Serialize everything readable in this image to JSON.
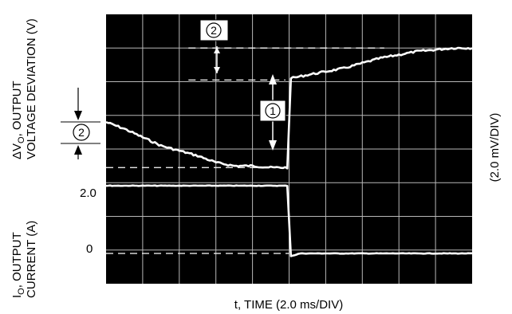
{
  "chart_data": {
    "type": "line",
    "xlabel": "t, TIME (2.0 ms/DIV)",
    "ylabel_voltage": [
      "ΔV",
      "O",
      ", OUTPUT",
      "VOLTAGE DEVIATION (V)"
    ],
    "ylabel_current": [
      "I",
      "O",
      ", OUTPUT",
      "CURRENT (A)"
    ],
    "right_label": "(2.0 mV/DIV)",
    "current_ticks": [
      {
        "label": "2.0",
        "value": 2.0
      },
      {
        "label": "0",
        "value": 0
      }
    ],
    "markers": [
      "1",
      "2",
      "2"
    ],
    "grid": true,
    "divisions": {
      "x": 10,
      "y": 8
    },
    "step_time_div": 5.0,
    "series": [
      {
        "role": "output-voltage",
        "unit": "div",
        "x": [
          0.0,
          0.5,
          1.0,
          1.5,
          2.0,
          2.5,
          3.0,
          3.5,
          4.0,
          4.5,
          4.95,
          5.05,
          5.5,
          6.0,
          6.5,
          7.0,
          7.5,
          8.0,
          8.5,
          9.0,
          9.5,
          10.0
        ],
        "y": [
          4.8,
          4.6,
          4.35,
          4.1,
          3.95,
          3.8,
          3.6,
          3.5,
          3.5,
          3.45,
          3.45,
          6.1,
          6.2,
          6.3,
          6.4,
          6.55,
          6.7,
          6.8,
          6.9,
          6.95,
          7.0,
          7.0
        ]
      },
      {
        "role": "output-current",
        "unit": "A",
        "x": [
          0.0,
          4.95,
          5.05,
          5.3,
          6.0,
          10.0
        ],
        "y": [
          2.0,
          2.0,
          -0.08,
          0.0,
          0.0,
          0.0
        ]
      }
    ],
    "reference_lines": [
      {
        "trace": "voltage",
        "y_div": 3.45,
        "x_div": [
          0.0,
          4.9
        ],
        "style": "dashed"
      },
      {
        "trace": "voltage",
        "y_div": 6.05,
        "x_div": [
          2.25,
          4.9
        ],
        "style": "dashed"
      },
      {
        "trace": "voltage",
        "y_div": 7.0,
        "x_div": [
          2.25,
          7.6
        ],
        "style": "dashed"
      },
      {
        "trace": "current",
        "value": 0,
        "x_div": [
          0.0,
          5.0
        ],
        "style": "dashed"
      }
    ]
  }
}
